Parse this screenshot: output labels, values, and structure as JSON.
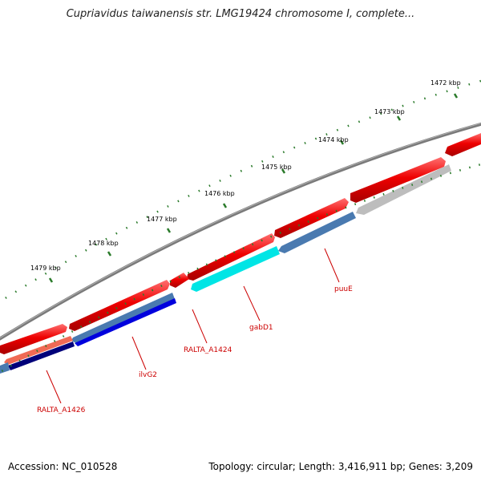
{
  "title": "Cupriavidus taiwanensis str. LMG19424 chromosome I, complete...",
  "footer": {
    "accession": "Accession: NC_010528",
    "summary": "Topology: circular; Length: 3,416,911 bp; Genes: 3,209"
  },
  "kbp_labels": [
    "1472 kbp",
    "1473 kbp",
    "1474 kbp",
    "1475 kbp",
    "1476 kbp",
    "1477 kbp",
    "1478 kbp",
    "1479 kbp"
  ],
  "gene_labels": [
    "puuE",
    "gabD1",
    "RALTA_A1424",
    "ilvG2",
    "RALTA_A1426"
  ],
  "colors": {
    "backbone": "#808080",
    "forward_gene": "#ee0000",
    "reverse_gene": "#4a7ab0",
    "gabD1": "#00e5e5",
    "ilvG2": "#0000dd",
    "RALTA_A1426": "#00007a",
    "puuE_neighbor": "#bdbdbd",
    "label": "#cc0000",
    "tick": "#2a7a2a"
  }
}
